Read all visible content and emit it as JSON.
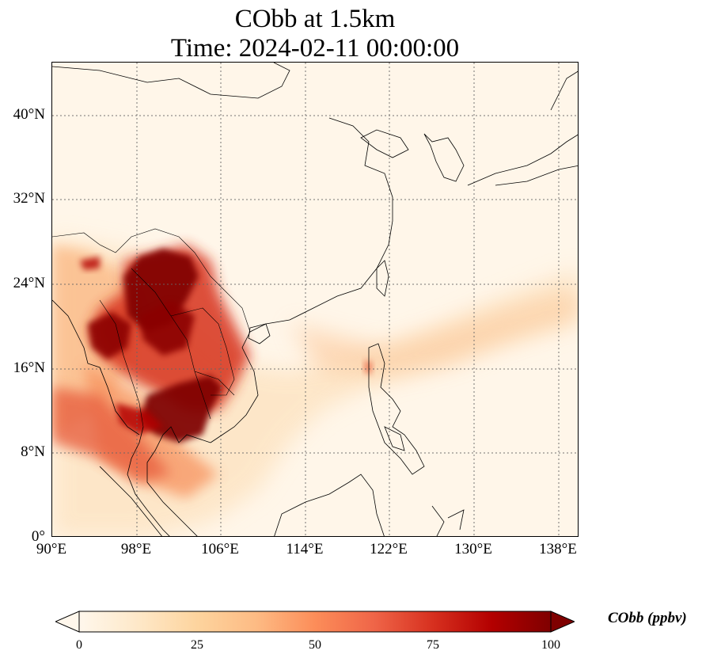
{
  "title": {
    "line1": "CObb at 1.5km",
    "line2": "Time: 2024-02-11 00:00:00"
  },
  "map": {
    "lon_range": [
      90,
      140
    ],
    "lat_range": [
      0,
      45
    ],
    "gridlines": "dotted",
    "lat_ticks": [
      "0°",
      "8°N",
      "16°N",
      "24°N",
      "32°N",
      "40°N"
    ],
    "lon_ticks": [
      "90°E",
      "98°E",
      "106°E",
      "114°E",
      "122°E",
      "130°E",
      "138°E"
    ],
    "colormap": "OrRd",
    "background_color": "#fff6e9",
    "coastline_color": "#000000"
  },
  "colorbar": {
    "label": "CObb (ppbv)",
    "ticks": [
      "0",
      "25",
      "50",
      "75",
      "100"
    ],
    "range": [
      0,
      100
    ],
    "extend": "both",
    "colors": [
      "#fff7ec",
      "#fee8c8",
      "#fdd49e",
      "#fdbb84",
      "#fc8d59",
      "#ef6548",
      "#d7301f",
      "#b30000",
      "#7f0000"
    ]
  }
}
